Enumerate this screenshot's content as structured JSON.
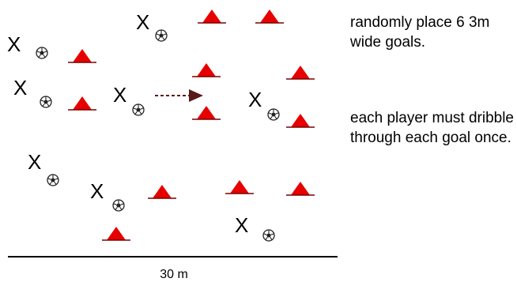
{
  "drill": {
    "player_marker": "X",
    "scale_label": "30 m",
    "notes": [
      "randomly place 6 3m wide goals.",
      "each player must dribble through each goal once."
    ],
    "colors": {
      "cone": "#e60000",
      "cone_edge": "#7a0000",
      "ball": "#222222",
      "arrow": "#5a1a1a"
    }
  }
}
